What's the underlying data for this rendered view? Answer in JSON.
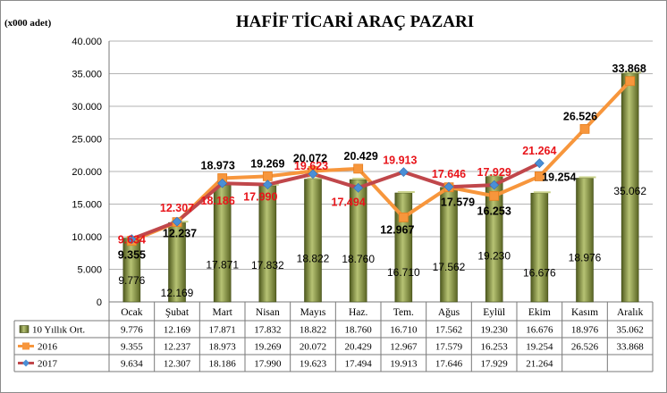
{
  "chart_data": {
    "type": "bar",
    "title": "HAFİF TİCARİ ARAÇ PAZARI",
    "unit_label": "(x000 adet)",
    "categories": [
      "Ocak",
      "Şubat",
      "Mart",
      "Nisan",
      "Mayıs",
      "Haz.",
      "Tem.",
      "Ağus",
      "Eylül",
      "Ekim",
      "Kasım",
      "Aralık"
    ],
    "ylim": [
      0,
      40000
    ],
    "yticks": [
      "0",
      "5.000",
      "10.000",
      "15.000",
      "20.000",
      "25.000",
      "30.000",
      "35.000",
      "40.000"
    ],
    "grid": true,
    "series": [
      {
        "name": "10 Yıllık Ort.",
        "type": "bar",
        "color": "#7d8a3a",
        "values": [
          9776,
          12169,
          17871,
          17832,
          18822,
          18760,
          16710,
          17562,
          19230,
          16676,
          18976,
          35062
        ],
        "labels": [
          "9.776",
          "12.169",
          "17.871",
          "17.832",
          "18.822",
          "18.760",
          "16.710",
          "17.562",
          "19.230",
          "16.676",
          "18.976",
          "35.062"
        ]
      },
      {
        "name": "2016",
        "type": "line",
        "color": "#f7963c",
        "marker": "square",
        "values": [
          9355,
          12237,
          18973,
          19269,
          20072,
          20429,
          12967,
          17579,
          16253,
          19254,
          26526,
          33868
        ],
        "labels": [
          "9.355",
          "12.237",
          "18.973",
          "19.269",
          "20.072",
          "20.429",
          "12.967",
          "17.579",
          "16.253",
          "19.254",
          "26.526",
          "33.868"
        ]
      },
      {
        "name": "2017",
        "type": "line",
        "color": "#c0474b",
        "marker": "diamond",
        "marker_color": "#4a8fd6",
        "values": [
          9634,
          12307,
          18186,
          17990,
          19623,
          17494,
          19913,
          17646,
          17929,
          21264,
          null,
          null
        ],
        "labels": [
          "9.634",
          "12.307",
          "18.186",
          "17.990",
          "19.623",
          "17.494",
          "19.913",
          "17.646",
          "17.929",
          "21.264",
          "",
          ""
        ]
      }
    ]
  }
}
